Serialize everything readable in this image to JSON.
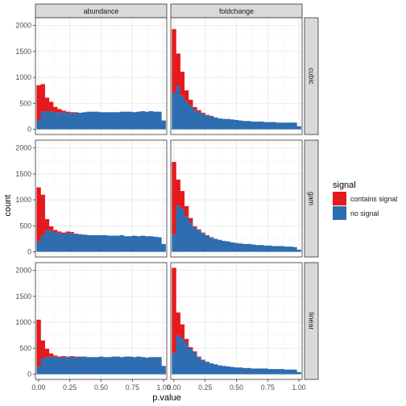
{
  "chart_data": {
    "type": "bar",
    "subtype": "faceted stacked histogram",
    "xlabel": "p.value",
    "ylabel": "count",
    "xlim": [
      -0.025,
      1.025
    ],
    "ylim": [
      -100,
      2150
    ],
    "x_ticks": [
      0.0,
      0.25,
      0.5,
      0.75,
      1.0
    ],
    "x_tick_labels": [
      "0.00",
      "0.25",
      "0.50",
      "0.75",
      "1.00"
    ],
    "y_ticks": [
      0,
      500,
      1000,
      1500,
      2000
    ],
    "y_tick_labels": [
      "0",
      "500",
      "1000",
      "1500",
      "2000"
    ],
    "grid": true,
    "columns": [
      "abundance",
      "foldchange"
    ],
    "rows": [
      "cubic",
      "gam",
      "linear"
    ],
    "legend": {
      "title": "signal",
      "position": "right",
      "entries": [
        {
          "label": "contains signal",
          "color": "#E41A1C"
        },
        {
          "label": "no signal",
          "color": "#2E6DB0"
        }
      ]
    },
    "bins": {
      "first_center": 0.0,
      "width": 0.0333,
      "count": 31
    },
    "series": [
      "contains signal",
      "no signal"
    ],
    "panels": [
      {
        "row": "cubic",
        "col": "abundance",
        "no_signal": [
          170,
          340,
          350,
          340,
          330,
          330,
          320,
          320,
          310,
          320,
          320,
          330,
          340,
          340,
          340,
          330,
          330,
          330,
          330,
          330,
          340,
          340,
          340,
          330,
          340,
          350,
          340,
          350,
          340,
          340,
          170
        ],
        "contains_signal": [
          680,
          530,
          260,
          190,
          100,
          60,
          40,
          20,
          20,
          10,
          0,
          0,
          0,
          0,
          0,
          0,
          0,
          0,
          0,
          0,
          0,
          0,
          0,
          0,
          0,
          0,
          0,
          0,
          0,
          0,
          0
        ]
      },
      {
        "row": "cubic",
        "col": "foldchange",
        "no_signal": [
          700,
          830,
          650,
          540,
          460,
          380,
          340,
          300,
          270,
          250,
          230,
          210,
          200,
          200,
          190,
          180,
          170,
          160,
          160,
          150,
          150,
          150,
          140,
          140,
          140,
          130,
          130,
          130,
          130,
          130,
          60
        ],
        "contains_signal": [
          1230,
          630,
          460,
          210,
          110,
          50,
          30,
          20,
          10,
          10,
          0,
          0,
          0,
          0,
          0,
          0,
          0,
          0,
          0,
          0,
          0,
          0,
          0,
          0,
          0,
          0,
          0,
          0,
          0,
          0,
          0
        ]
      },
      {
        "row": "gam",
        "col": "abundance",
        "no_signal": [
          200,
          320,
          410,
          410,
          380,
          360,
          350,
          360,
          360,
          340,
          330,
          330,
          320,
          320,
          320,
          320,
          320,
          310,
          310,
          310,
          320,
          300,
          300,
          310,
          300,
          310,
          300,
          300,
          290,
          280,
          150
        ],
        "contains_signal": [
          1040,
          780,
          220,
          80,
          40,
          30,
          20,
          30,
          20,
          10,
          10,
          0,
          0,
          0,
          0,
          0,
          0,
          0,
          0,
          0,
          0,
          0,
          0,
          0,
          0,
          0,
          0,
          0,
          0,
          0,
          0
        ]
      },
      {
        "row": "gam",
        "col": "foldchange",
        "no_signal": [
          340,
          890,
          830,
          680,
          570,
          470,
          410,
          360,
          310,
          270,
          250,
          230,
          210,
          200,
          180,
          170,
          160,
          150,
          150,
          140,
          130,
          130,
          120,
          120,
          110,
          110,
          110,
          100,
          100,
          90,
          40
        ],
        "contains_signal": [
          1390,
          500,
          340,
          200,
          80,
          20,
          20,
          10,
          10,
          10,
          0,
          0,
          0,
          0,
          0,
          0,
          0,
          0,
          0,
          0,
          0,
          0,
          0,
          0,
          0,
          0,
          0,
          0,
          0,
          0,
          0
        ]
      },
      {
        "row": "linear",
        "col": "abundance",
        "no_signal": [
          150,
          310,
          330,
          340,
          330,
          320,
          330,
          330,
          340,
          330,
          340,
          340,
          330,
          330,
          330,
          340,
          330,
          330,
          340,
          340,
          330,
          340,
          340,
          330,
          340,
          330,
          320,
          330,
          330,
          330,
          160
        ],
        "contains_signal": [
          900,
          340,
          160,
          60,
          30,
          20,
          20,
          10,
          10,
          10,
          0,
          0,
          0,
          0,
          0,
          0,
          0,
          0,
          0,
          0,
          0,
          0,
          0,
          0,
          0,
          0,
          0,
          0,
          0,
          0,
          0
        ]
      },
      {
        "row": "linear",
        "col": "foldchange",
        "no_signal": [
          410,
          740,
          700,
          600,
          490,
          420,
          330,
          270,
          240,
          210,
          190,
          170,
          160,
          150,
          140,
          130,
          130,
          120,
          120,
          110,
          110,
          110,
          110,
          100,
          100,
          100,
          100,
          90,
          90,
          90,
          40
        ],
        "contains_signal": [
          1640,
          450,
          260,
          80,
          30,
          20,
          10,
          10,
          0,
          0,
          0,
          0,
          0,
          0,
          0,
          0,
          0,
          0,
          0,
          0,
          0,
          0,
          0,
          0,
          0,
          0,
          0,
          0,
          0,
          0,
          0
        ]
      }
    ]
  }
}
